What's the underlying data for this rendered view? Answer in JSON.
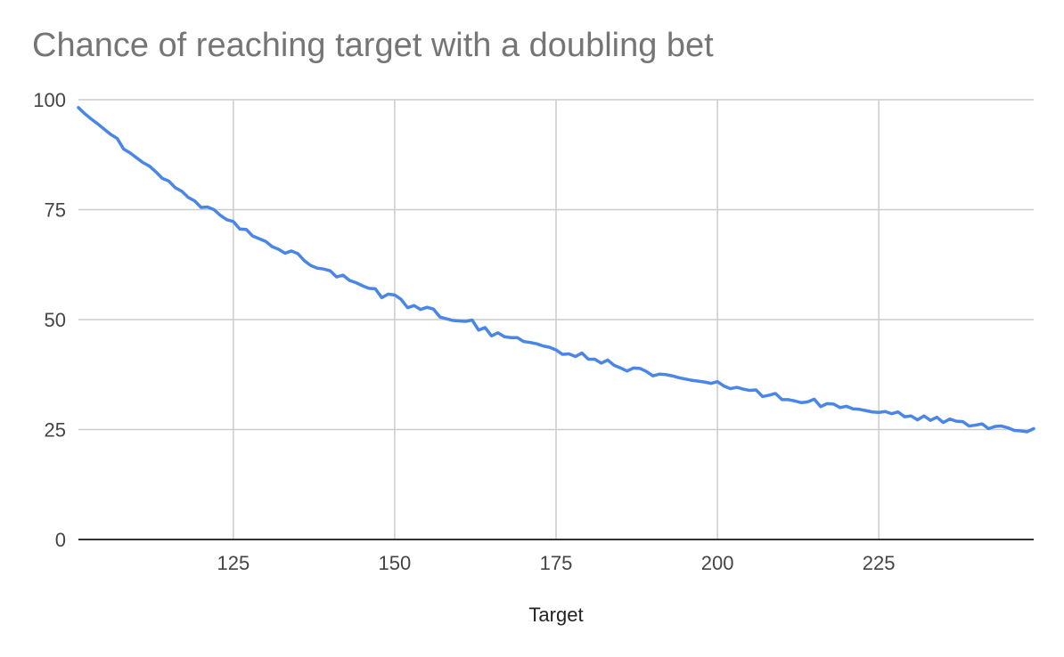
{
  "chart_data": {
    "type": "line",
    "title": "Chance of reaching target with a doubling bet",
    "xlabel": "Target",
    "ylabel": "",
    "xlim": [
      101,
      249
    ],
    "ylim": [
      0,
      100
    ],
    "x_ticks": [
      125,
      150,
      175,
      200,
      225
    ],
    "y_ticks": [
      0,
      25,
      50,
      75,
      100
    ],
    "grid": true,
    "legend": "none",
    "colors": {
      "line": "#4a86e8",
      "grid": "#cccccc",
      "baseline": "#333333"
    },
    "x": [
      101,
      102,
      103,
      104,
      105,
      106,
      107,
      108,
      109,
      110,
      111,
      112,
      113,
      114,
      115,
      116,
      117,
      118,
      119,
      120,
      121,
      122,
      123,
      124,
      125,
      126,
      127,
      128,
      129,
      130,
      131,
      132,
      133,
      134,
      135,
      136,
      137,
      138,
      139,
      140,
      141,
      142,
      143,
      144,
      145,
      146,
      147,
      148,
      149,
      150,
      151,
      152,
      153,
      154,
      155,
      156,
      157,
      158,
      159,
      160,
      161,
      162,
      163,
      164,
      165,
      166,
      167,
      168,
      169,
      170,
      171,
      172,
      173,
      174,
      175,
      176,
      177,
      178,
      179,
      180,
      181,
      182,
      183,
      184,
      185,
      186,
      187,
      188,
      189,
      190,
      191,
      192,
      193,
      194,
      195,
      196,
      197,
      198,
      199,
      200,
      201,
      202,
      203,
      204,
      205,
      206,
      207,
      208,
      209,
      210,
      211,
      212,
      213,
      214,
      215,
      216,
      217,
      218,
      219,
      220,
      221,
      222,
      223,
      224,
      225,
      226,
      227,
      228,
      229,
      230,
      231,
      232,
      233,
      234,
      235,
      236,
      237,
      238,
      239,
      240,
      241,
      242,
      243,
      244,
      245,
      246,
      247,
      248,
      249
    ],
    "series": [
      {
        "values": [
          98.2,
          96.8,
          95.6,
          94.5,
          93.3,
          92.1,
          91.2,
          88.8,
          87.9,
          86.8,
          85.7,
          84.9,
          83.6,
          82.1,
          81.5,
          80.0,
          79.2,
          77.8,
          77.0,
          75.5,
          75.6,
          75.0,
          73.7,
          72.7,
          72.3,
          70.6,
          70.5,
          69.0,
          68.4,
          67.8,
          66.6,
          66.0,
          65.1,
          65.6,
          65.0,
          63.4,
          62.3,
          61.7,
          61.5,
          61.1,
          59.7,
          60.1,
          58.9,
          58.4,
          57.7,
          57.1,
          57.0,
          55.0,
          55.8,
          55.6,
          54.6,
          52.7,
          53.2,
          52.3,
          52.8,
          52.4,
          50.6,
          50.2,
          49.8,
          49.7,
          49.6,
          49.9,
          47.6,
          48.2,
          46.3,
          47.0,
          46.1,
          45.9,
          45.9,
          45.0,
          44.8,
          44.5,
          44.0,
          43.7,
          43.1,
          42.1,
          42.2,
          41.6,
          42.4,
          41.0,
          41.0,
          40.1,
          40.8,
          39.6,
          39.0,
          38.3,
          39.0,
          38.9,
          38.2,
          37.2,
          37.6,
          37.5,
          37.2,
          36.8,
          36.5,
          36.2,
          36.0,
          35.8,
          35.5,
          35.9,
          34.9,
          34.3,
          34.6,
          34.2,
          33.9,
          34.0,
          32.5,
          32.8,
          33.2,
          31.8,
          31.8,
          31.5,
          31.1,
          31.3,
          31.9,
          30.2,
          30.9,
          30.8,
          30.0,
          30.3,
          29.7,
          29.6,
          29.3,
          29.0,
          28.9,
          29.1,
          28.6,
          29.0,
          27.9,
          28.1,
          27.2,
          28.1,
          27.1,
          27.8,
          26.6,
          27.4,
          26.9,
          26.8,
          25.8,
          26.0,
          26.3,
          25.2,
          25.7,
          25.8,
          25.4,
          24.8,
          24.7,
          24.5,
          25.2
        ]
      }
    ]
  }
}
